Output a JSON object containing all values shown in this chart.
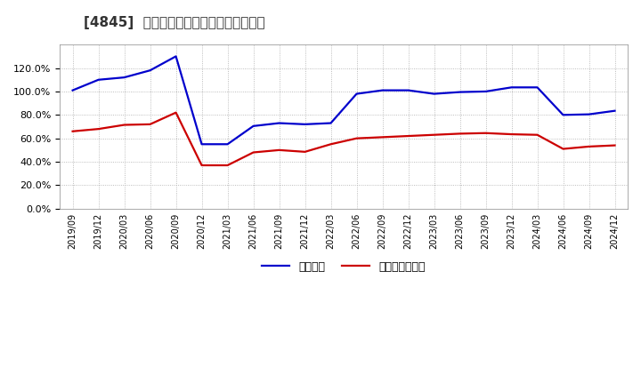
{
  "title": "[4845]  固定比率、固定長期適合率の推移",
  "legend_labels": [
    "固定比率",
    "固定長期適合率"
  ],
  "line_colors": [
    "#0000cc",
    "#cc0000"
  ],
  "background_color": "#ffffff",
  "plot_bg_color": "#ffffff",
  "grid_color": "#aaaaaa",
  "ylim": [
    0,
    140
  ],
  "yticks": [
    0,
    20,
    40,
    60,
    80,
    100,
    120
  ],
  "x_labels": [
    "2019/09",
    "2019/12",
    "2020/03",
    "2020/06",
    "2020/09",
    "2020/12",
    "2021/03",
    "2021/06",
    "2021/09",
    "2021/12",
    "2022/03",
    "2022/06",
    "2022/09",
    "2022/12",
    "2023/03",
    "2023/06",
    "2023/09",
    "2023/12",
    "2024/03",
    "2024/06",
    "2024/09",
    "2024/12"
  ],
  "fixed_ratio": [
    101.0,
    110.0,
    112.0,
    118.0,
    130.0,
    55.0,
    55.0,
    70.5,
    73.0,
    72.0,
    73.0,
    98.0,
    101.0,
    101.0,
    98.0,
    99.5,
    100.0,
    103.5,
    103.5,
    80.0,
    80.5,
    83.5
  ],
  "fixed_long_ratio": [
    66.0,
    68.0,
    71.5,
    72.0,
    82.0,
    37.0,
    37.0,
    48.0,
    50.0,
    48.5,
    55.0,
    60.0,
    61.0,
    62.0,
    63.0,
    64.0,
    64.5,
    63.5,
    63.0,
    51.0,
    53.0,
    54.0
  ]
}
